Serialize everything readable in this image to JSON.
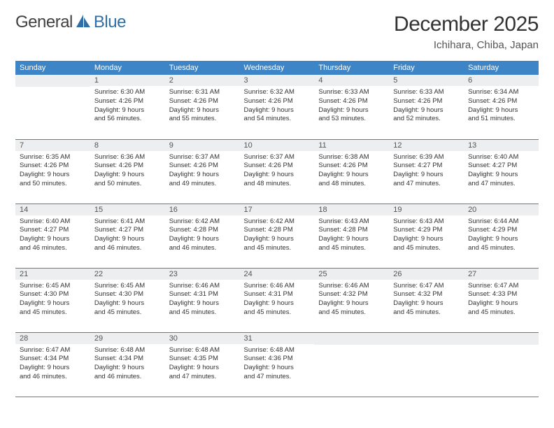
{
  "logo": {
    "text1": "General",
    "text2": "Blue"
  },
  "title": "December 2025",
  "location": "Ichihara, Chiba, Japan",
  "colors": {
    "header_bg": "#3d85c6",
    "header_text": "#ffffff",
    "daynum_bg": "#eceeef",
    "row_divider": "#3d85c6",
    "logo_gray": "#414141",
    "logo_blue": "#2f6fa6"
  },
  "weekdays": [
    "Sunday",
    "Monday",
    "Tuesday",
    "Wednesday",
    "Thursday",
    "Friday",
    "Saturday"
  ],
  "weeks": [
    [
      null,
      {
        "n": "1",
        "sr": "6:30 AM",
        "ss": "4:26 PM",
        "dlh": "9",
        "dlm": "56"
      },
      {
        "n": "2",
        "sr": "6:31 AM",
        "ss": "4:26 PM",
        "dlh": "9",
        "dlm": "55"
      },
      {
        "n": "3",
        "sr": "6:32 AM",
        "ss": "4:26 PM",
        "dlh": "9",
        "dlm": "54"
      },
      {
        "n": "4",
        "sr": "6:33 AM",
        "ss": "4:26 PM",
        "dlh": "9",
        "dlm": "53"
      },
      {
        "n": "5",
        "sr": "6:33 AM",
        "ss": "4:26 PM",
        "dlh": "9",
        "dlm": "52"
      },
      {
        "n": "6",
        "sr": "6:34 AM",
        "ss": "4:26 PM",
        "dlh": "9",
        "dlm": "51"
      }
    ],
    [
      {
        "n": "7",
        "sr": "6:35 AM",
        "ss": "4:26 PM",
        "dlh": "9",
        "dlm": "50"
      },
      {
        "n": "8",
        "sr": "6:36 AM",
        "ss": "4:26 PM",
        "dlh": "9",
        "dlm": "50"
      },
      {
        "n": "9",
        "sr": "6:37 AM",
        "ss": "4:26 PM",
        "dlh": "9",
        "dlm": "49"
      },
      {
        "n": "10",
        "sr": "6:37 AM",
        "ss": "4:26 PM",
        "dlh": "9",
        "dlm": "48"
      },
      {
        "n": "11",
        "sr": "6:38 AM",
        "ss": "4:26 PM",
        "dlh": "9",
        "dlm": "48"
      },
      {
        "n": "12",
        "sr": "6:39 AM",
        "ss": "4:27 PM",
        "dlh": "9",
        "dlm": "47"
      },
      {
        "n": "13",
        "sr": "6:40 AM",
        "ss": "4:27 PM",
        "dlh": "9",
        "dlm": "47"
      }
    ],
    [
      {
        "n": "14",
        "sr": "6:40 AM",
        "ss": "4:27 PM",
        "dlh": "9",
        "dlm": "46"
      },
      {
        "n": "15",
        "sr": "6:41 AM",
        "ss": "4:27 PM",
        "dlh": "9",
        "dlm": "46"
      },
      {
        "n": "16",
        "sr": "6:42 AM",
        "ss": "4:28 PM",
        "dlh": "9",
        "dlm": "46"
      },
      {
        "n": "17",
        "sr": "6:42 AM",
        "ss": "4:28 PM",
        "dlh": "9",
        "dlm": "45"
      },
      {
        "n": "18",
        "sr": "6:43 AM",
        "ss": "4:28 PM",
        "dlh": "9",
        "dlm": "45"
      },
      {
        "n": "19",
        "sr": "6:43 AM",
        "ss": "4:29 PM",
        "dlh": "9",
        "dlm": "45"
      },
      {
        "n": "20",
        "sr": "6:44 AM",
        "ss": "4:29 PM",
        "dlh": "9",
        "dlm": "45"
      }
    ],
    [
      {
        "n": "21",
        "sr": "6:45 AM",
        "ss": "4:30 PM",
        "dlh": "9",
        "dlm": "45"
      },
      {
        "n": "22",
        "sr": "6:45 AM",
        "ss": "4:30 PM",
        "dlh": "9",
        "dlm": "45"
      },
      {
        "n": "23",
        "sr": "6:46 AM",
        "ss": "4:31 PM",
        "dlh": "9",
        "dlm": "45"
      },
      {
        "n": "24",
        "sr": "6:46 AM",
        "ss": "4:31 PM",
        "dlh": "9",
        "dlm": "45"
      },
      {
        "n": "25",
        "sr": "6:46 AM",
        "ss": "4:32 PM",
        "dlh": "9",
        "dlm": "45"
      },
      {
        "n": "26",
        "sr": "6:47 AM",
        "ss": "4:32 PM",
        "dlh": "9",
        "dlm": "45"
      },
      {
        "n": "27",
        "sr": "6:47 AM",
        "ss": "4:33 PM",
        "dlh": "9",
        "dlm": "45"
      }
    ],
    [
      {
        "n": "28",
        "sr": "6:47 AM",
        "ss": "4:34 PM",
        "dlh": "9",
        "dlm": "46"
      },
      {
        "n": "29",
        "sr": "6:48 AM",
        "ss": "4:34 PM",
        "dlh": "9",
        "dlm": "46"
      },
      {
        "n": "30",
        "sr": "6:48 AM",
        "ss": "4:35 PM",
        "dlh": "9",
        "dlm": "47"
      },
      {
        "n": "31",
        "sr": "6:48 AM",
        "ss": "4:36 PM",
        "dlh": "9",
        "dlm": "47"
      },
      null,
      null,
      null
    ]
  ],
  "labels": {
    "sunrise": "Sunrise:",
    "sunset": "Sunset:",
    "daylight": "Daylight:",
    "hours": "hours",
    "and": "and",
    "minutes": "minutes."
  }
}
